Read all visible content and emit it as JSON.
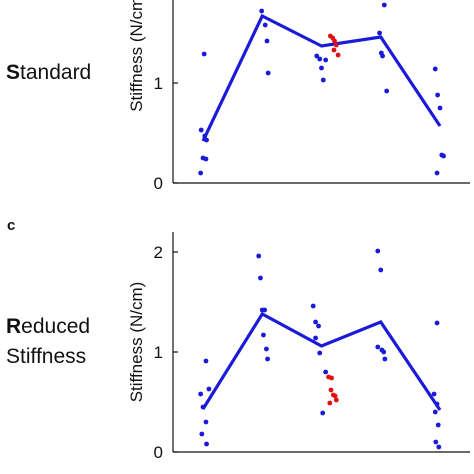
{
  "colors": {
    "line": "#1a1ad9",
    "points": "#1a1ad9",
    "highlight": "#e01010",
    "axis": "#111111"
  },
  "rows": [
    {
      "label_bold": "S",
      "label_rest": "tandard",
      "label_line2": "",
      "panel_letter": ""
    },
    {
      "label_bold": "R",
      "label_rest": "educed",
      "label_line2": "Stiffness",
      "panel_letter": "c"
    }
  ],
  "chart_data": [
    {
      "type": "scatter",
      "title": "",
      "xlabel": "",
      "ylabel": "Stiffness (N/cm)",
      "ylim": [
        0,
        2
      ],
      "yticks": [
        0,
        1
      ],
      "mean_line": {
        "x": [
          1,
          2,
          3,
          4,
          5
        ],
        "y": [
          0.42,
          1.67,
          1.37,
          1.46,
          0.57
        ]
      },
      "series": [
        {
          "values": [
            [
              0.97,
              0.53
            ],
            [
              1.03,
              0.47
            ],
            [
              1.06,
              0.43
            ],
            [
              1.0,
              0.25
            ],
            [
              1.05,
              0.24
            ],
            [
              0.96,
              0.1
            ],
            [
              1.02,
              1.29
            ],
            [
              1.94,
              1.98
            ],
            [
              1.99,
              1.72
            ],
            [
              2.05,
              1.58
            ],
            [
              2.08,
              1.42
            ],
            [
              2.1,
              1.1
            ],
            [
              2.85,
              1.85
            ],
            [
              2.92,
              1.27
            ],
            [
              2.97,
              1.24
            ],
            [
              3.0,
              1.15
            ],
            [
              3.03,
              1.03
            ],
            [
              3.07,
              1.23
            ],
            [
              3.95,
              2.0
            ],
            [
              3.98,
              1.5
            ],
            [
              4.01,
              1.3
            ],
            [
              4.03,
              1.27
            ],
            [
              4.06,
              1.78
            ],
            [
              4.1,
              0.92
            ],
            [
              4.92,
              1.14
            ],
            [
              4.96,
              0.88
            ],
            [
              5.0,
              0.75
            ],
            [
              5.03,
              0.28
            ],
            [
              5.06,
              0.27
            ],
            [
              4.95,
              0.1
            ]
          ]
        },
        {
          "values": [
            [
              3.15,
              1.47
            ],
            [
              3.19,
              1.45
            ],
            [
              3.22,
              1.42
            ],
            [
              3.25,
              1.38
            ],
            [
              3.21,
              1.33
            ],
            [
              3.28,
              1.28
            ]
          ]
        }
      ]
    },
    {
      "type": "scatter",
      "title": "",
      "xlabel": "",
      "ylabel": "Stiffness (N/cm)",
      "ylim": [
        0,
        2.2
      ],
      "yticks": [
        0,
        1,
        2
      ],
      "mean_line": {
        "x": [
          1,
          2,
          3,
          4,
          5
        ],
        "y": [
          0.43,
          1.38,
          1.06,
          1.3,
          0.42
        ]
      },
      "series": [
        {
          "values": [
            [
              1.05,
              0.91
            ],
            [
              1.1,
              0.63
            ],
            [
              0.96,
              0.58
            ],
            [
              1.0,
              0.45
            ],
            [
              1.05,
              0.3
            ],
            [
              0.98,
              0.18
            ],
            [
              1.06,
              0.08
            ],
            [
              1.94,
              1.96
            ],
            [
              1.97,
              1.74
            ],
            [
              2.0,
              1.42
            ],
            [
              2.04,
              1.42
            ],
            [
              2.02,
              1.17
            ],
            [
              2.07,
              1.03
            ],
            [
              2.09,
              0.93
            ],
            [
              2.86,
              1.46
            ],
            [
              2.9,
              1.3
            ],
            [
              2.95,
              1.26
            ],
            [
              2.9,
              1.14
            ],
            [
              2.97,
              0.99
            ],
            [
              3.07,
              0.8
            ],
            [
              3.02,
              0.39
            ],
            [
              3.95,
              2.01
            ],
            [
              4.0,
              1.82
            ],
            [
              3.95,
              1.05
            ],
            [
              4.02,
              1.02
            ],
            [
              4.07,
              0.93
            ],
            [
              4.05,
              1.0
            ],
            [
              4.95,
              1.29
            ],
            [
              4.9,
              0.58
            ],
            [
              4.95,
              0.48
            ],
            [
              4.92,
              0.4
            ],
            [
              4.97,
              0.27
            ],
            [
              4.93,
              0.1
            ],
            [
              4.98,
              0.05
            ]
          ]
        },
        {
          "values": [
            [
              3.12,
              0.75
            ],
            [
              3.17,
              0.74
            ],
            [
              3.16,
              0.62
            ],
            [
              3.2,
              0.57
            ],
            [
              3.23,
              0.56
            ],
            [
              3.25,
              0.52
            ],
            [
              3.14,
              0.49
            ]
          ]
        }
      ]
    }
  ]
}
